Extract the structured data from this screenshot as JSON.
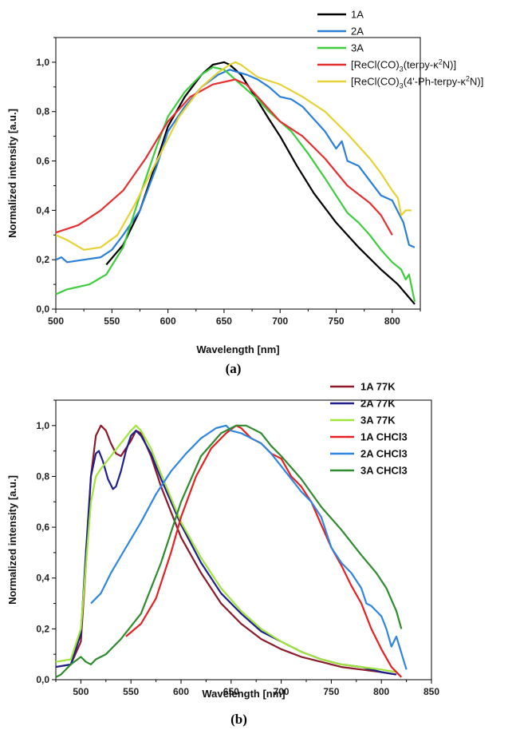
{
  "chart_data": [
    {
      "type": "line",
      "xlabel": "Wavelength [nm]",
      "ylabel": "Normalized intensity [a.u.]",
      "caption": "(a)",
      "xlim": [
        500,
        825
      ],
      "ylim": [
        0.0,
        1.1
      ],
      "xticks": [
        500,
        550,
        600,
        650,
        700,
        750,
        800
      ],
      "yticks": [
        0.0,
        0.2,
        0.4,
        0.6,
        0.8,
        1.0
      ],
      "tick_labels_y": [
        "0,0",
        "0,2",
        "0,4",
        "0,6",
        "0,8",
        "1,0"
      ],
      "legend_position": "top-right",
      "series": [
        {
          "name": "1A",
          "legend": [
            "1A"
          ],
          "color": "#000000",
          "x": [
            545,
            560,
            575,
            590,
            600,
            615,
            630,
            640,
            650,
            655,
            665,
            675,
            690,
            700,
            715,
            730,
            750,
            770,
            790,
            805,
            820
          ],
          "y": [
            0.18,
            0.26,
            0.4,
            0.6,
            0.74,
            0.86,
            0.95,
            0.99,
            1.0,
            0.99,
            0.95,
            0.88,
            0.77,
            0.7,
            0.58,
            0.47,
            0.35,
            0.25,
            0.16,
            0.1,
            0.02
          ]
        },
        {
          "name": "2A",
          "legend": [
            "2A"
          ],
          "color": "#2A7FD9",
          "x": [
            500,
            505,
            510,
            525,
            540,
            550,
            560,
            575,
            590,
            600,
            615,
            630,
            645,
            655,
            662,
            670,
            680,
            690,
            700,
            710,
            720,
            730,
            740,
            750,
            755,
            760,
            770,
            780,
            790,
            800,
            810,
            815,
            820
          ],
          "y": [
            0.2,
            0.21,
            0.19,
            0.2,
            0.21,
            0.24,
            0.3,
            0.4,
            0.58,
            0.72,
            0.82,
            0.9,
            0.95,
            0.97,
            0.96,
            0.95,
            0.93,
            0.9,
            0.86,
            0.85,
            0.82,
            0.77,
            0.72,
            0.65,
            0.68,
            0.6,
            0.58,
            0.52,
            0.46,
            0.44,
            0.35,
            0.26,
            0.25
          ]
        },
        {
          "name": "3A",
          "legend": [
            "3A"
          ],
          "color": "#3DCC3D",
          "x": [
            500,
            510,
            530,
            545,
            560,
            575,
            590,
            600,
            615,
            630,
            640,
            650,
            660,
            670,
            680,
            690,
            700,
            710,
            725,
            740,
            750,
            760,
            770,
            780,
            790,
            800,
            808,
            812,
            815,
            820
          ],
          "y": [
            0.06,
            0.08,
            0.1,
            0.14,
            0.25,
            0.46,
            0.66,
            0.78,
            0.88,
            0.95,
            0.98,
            0.97,
            0.93,
            0.89,
            0.85,
            0.8,
            0.76,
            0.72,
            0.63,
            0.53,
            0.46,
            0.39,
            0.35,
            0.3,
            0.24,
            0.19,
            0.16,
            0.12,
            0.14,
            0.03
          ]
        },
        {
          "name": "[ReCl(CO)3(terpy-κ2N)]",
          "legend": [
            "[ReCl(CO)",
            "3",
            "(terpy-κ",
            "2",
            "N)]"
          ],
          "color": "#E53030",
          "x": [
            500,
            520,
            540,
            560,
            580,
            600,
            620,
            640,
            660,
            670,
            680,
            700,
            720,
            740,
            760,
            780,
            790,
            800
          ],
          "y": [
            0.31,
            0.34,
            0.4,
            0.48,
            0.61,
            0.76,
            0.86,
            0.91,
            0.93,
            0.91,
            0.86,
            0.76,
            0.7,
            0.61,
            0.5,
            0.43,
            0.38,
            0.3
          ]
        },
        {
          "name": "[ReCl(CO)3(4'-Ph-terpy-κ2N)]",
          "legend": [
            "[ReCl(CO)",
            "3",
            "(4'-Ph-terpy-κ",
            "2",
            "N)]"
          ],
          "color": "#E6D235",
          "x": [
            500,
            510,
            525,
            540,
            555,
            570,
            590,
            610,
            630,
            645,
            655,
            660,
            665,
            680,
            700,
            720,
            740,
            760,
            780,
            790,
            800,
            805,
            808,
            812,
            817
          ],
          "y": [
            0.3,
            0.28,
            0.24,
            0.25,
            0.3,
            0.42,
            0.6,
            0.78,
            0.9,
            0.96,
            0.99,
            1.0,
            0.99,
            0.94,
            0.91,
            0.86,
            0.8,
            0.71,
            0.61,
            0.55,
            0.48,
            0.45,
            0.38,
            0.4,
            0.4
          ]
        }
      ]
    },
    {
      "type": "line",
      "xlabel": "Wavelength [nm]",
      "ylabel": "Normalized intensity [a.u.]",
      "caption": "(b)",
      "xlim": [
        475,
        850
      ],
      "ylim": [
        0.0,
        1.1
      ],
      "xticks": [
        500,
        550,
        600,
        650,
        700,
        750,
        800,
        850
      ],
      "yticks": [
        0.0,
        0.2,
        0.4,
        0.6,
        0.8,
        1.0
      ],
      "tick_labels_y": [
        "0,0",
        "0,2",
        "0,4",
        "0,6",
        "0,8",
        "1,0"
      ],
      "legend_position": "top-right",
      "series": [
        {
          "name": "1A 77K",
          "legend": [
            "1A 77K"
          ],
          "color": "#8B1A2B",
          "x": [
            475,
            490,
            500,
            505,
            510,
            515,
            520,
            525,
            530,
            535,
            540,
            550,
            555,
            560,
            570,
            580,
            600,
            620,
            640,
            660,
            680,
            700,
            720,
            740,
            760,
            780,
            800,
            815
          ],
          "y": [
            0.05,
            0.06,
            0.15,
            0.45,
            0.8,
            0.96,
            1.0,
            0.98,
            0.93,
            0.89,
            0.88,
            0.94,
            0.98,
            0.97,
            0.88,
            0.76,
            0.56,
            0.42,
            0.3,
            0.22,
            0.16,
            0.12,
            0.09,
            0.07,
            0.05,
            0.04,
            0.03,
            0.02
          ]
        },
        {
          "name": "2A 77K",
          "legend": [
            "2A 77K"
          ],
          "color": "#1F1F8C",
          "x": [
            475,
            490,
            500,
            505,
            510,
            515,
            518,
            522,
            527,
            532,
            535,
            540,
            545,
            550,
            555,
            560,
            570,
            580,
            600,
            620,
            640,
            660,
            680,
            700,
            720,
            740,
            760,
            780,
            800,
            815
          ],
          "y": [
            0.05,
            0.06,
            0.18,
            0.5,
            0.8,
            0.89,
            0.9,
            0.86,
            0.79,
            0.75,
            0.76,
            0.82,
            0.9,
            0.96,
            0.98,
            0.96,
            0.89,
            0.79,
            0.61,
            0.46,
            0.34,
            0.26,
            0.19,
            0.15,
            0.11,
            0.08,
            0.06,
            0.05,
            0.03,
            0.02
          ]
        },
        {
          "name": "3A 77K",
          "legend": [
            "3A 77K"
          ],
          "color": "#9FE53A",
          "x": [
            475,
            490,
            500,
            505,
            510,
            515,
            520,
            530,
            540,
            550,
            555,
            560,
            570,
            580,
            600,
            620,
            640,
            660,
            680,
            700,
            720,
            740,
            760,
            780,
            800,
            815
          ],
          "y": [
            0.07,
            0.08,
            0.2,
            0.45,
            0.7,
            0.8,
            0.83,
            0.88,
            0.93,
            0.98,
            1.0,
            0.98,
            0.91,
            0.81,
            0.62,
            0.48,
            0.36,
            0.27,
            0.2,
            0.15,
            0.11,
            0.08,
            0.06,
            0.05,
            0.04,
            0.03
          ]
        },
        {
          "name": "1A CHCl3",
          "legend": [
            "1A CHCl",
            "3"
          ],
          "color": "#E62020",
          "x": [
            545,
            560,
            575,
            590,
            600,
            615,
            630,
            645,
            655,
            660,
            670,
            680,
            690,
            700,
            710,
            720,
            730,
            740,
            750,
            760,
            770,
            780,
            790,
            800,
            810,
            820
          ],
          "y": [
            0.17,
            0.22,
            0.32,
            0.5,
            0.64,
            0.8,
            0.91,
            0.97,
            1.0,
            0.99,
            0.95,
            0.93,
            0.89,
            0.87,
            0.8,
            0.76,
            0.7,
            0.61,
            0.52,
            0.45,
            0.37,
            0.3,
            0.2,
            0.12,
            0.05,
            0.01
          ]
        },
        {
          "name": "2A CHCl3",
          "legend": [
            "2A CHCl",
            "3"
          ],
          "color": "#2E86E0",
          "x": [
            510,
            520,
            530,
            545,
            560,
            575,
            590,
            605,
            620,
            635,
            645,
            650,
            660,
            670,
            680,
            690,
            700,
            710,
            720,
            730,
            740,
            750,
            760,
            770,
            780,
            785,
            790,
            800,
            805,
            810,
            815,
            825
          ],
          "y": [
            0.3,
            0.34,
            0.42,
            0.52,
            0.62,
            0.73,
            0.82,
            0.89,
            0.95,
            0.99,
            1.0,
            0.98,
            0.97,
            0.95,
            0.93,
            0.89,
            0.84,
            0.79,
            0.74,
            0.7,
            0.64,
            0.52,
            0.46,
            0.42,
            0.36,
            0.3,
            0.29,
            0.25,
            0.2,
            0.13,
            0.17,
            0.04
          ]
        },
        {
          "name": "3A CHCl3",
          "legend": [
            "3A CHCl",
            "3"
          ],
          "color": "#2E8B2E",
          "x": [
            475,
            480,
            490,
            500,
            505,
            510,
            515,
            525,
            540,
            560,
            580,
            600,
            620,
            640,
            655,
            665,
            680,
            690,
            700,
            720,
            740,
            760,
            780,
            795,
            805,
            815,
            820
          ],
          "y": [
            0.01,
            0.02,
            0.06,
            0.09,
            0.07,
            0.06,
            0.08,
            0.1,
            0.16,
            0.26,
            0.46,
            0.7,
            0.88,
            0.97,
            1.0,
            1.0,
            0.97,
            0.92,
            0.88,
            0.79,
            0.68,
            0.59,
            0.49,
            0.42,
            0.36,
            0.27,
            0.2
          ]
        }
      ]
    }
  ]
}
